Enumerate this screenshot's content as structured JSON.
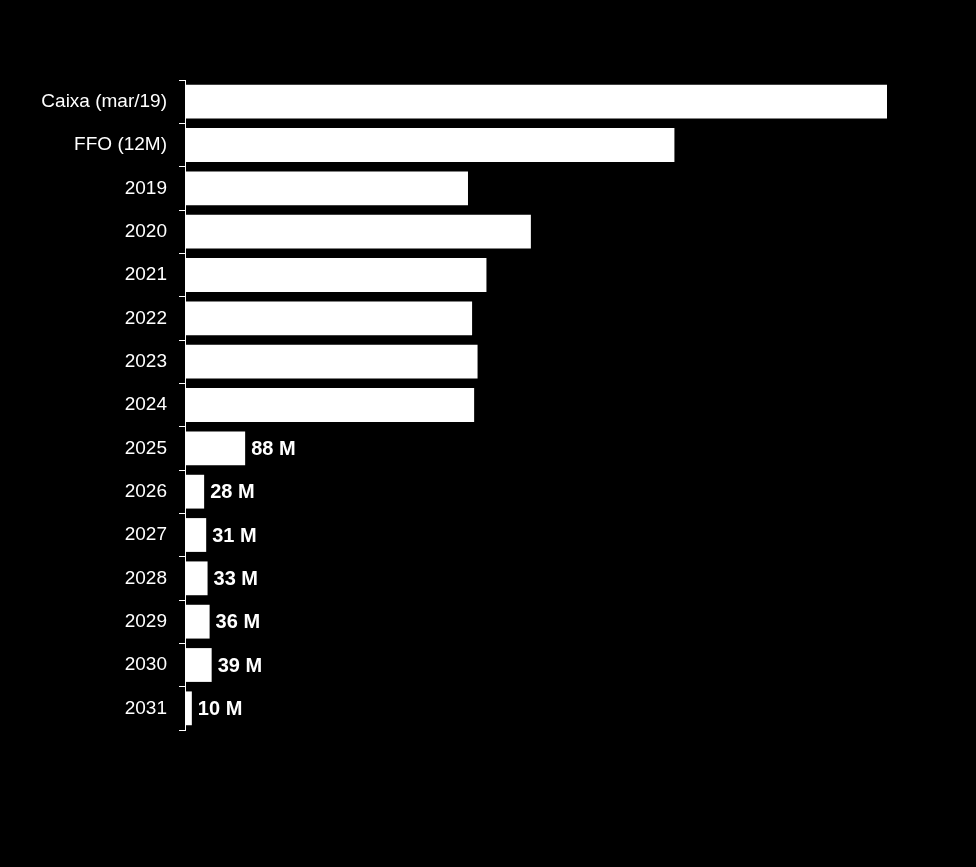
{
  "chart_data": {
    "type": "bar",
    "orientation": "horizontal",
    "categories": [
      "Caixa (mar/19)",
      "FFO (12M)",
      "2019",
      "2020",
      "2021",
      "2022",
      "2023",
      "2024",
      "2025",
      "2026",
      "2027",
      "2028",
      "2029",
      "2030",
      "2031"
    ],
    "values": [
      1027,
      716,
      414,
      506,
      441,
      420,
      428,
      423,
      88,
      28,
      31,
      33,
      36,
      39,
      10
    ],
    "value_labels": [
      null,
      null,
      null,
      null,
      null,
      null,
      null,
      null,
      "88 M",
      "28 M",
      "31 M",
      "33 M",
      "36 M",
      "39 M",
      "10 M"
    ],
    "data_labels": true,
    "color": "#ffffff",
    "grid": false,
    "tick_labels": "y"
  }
}
